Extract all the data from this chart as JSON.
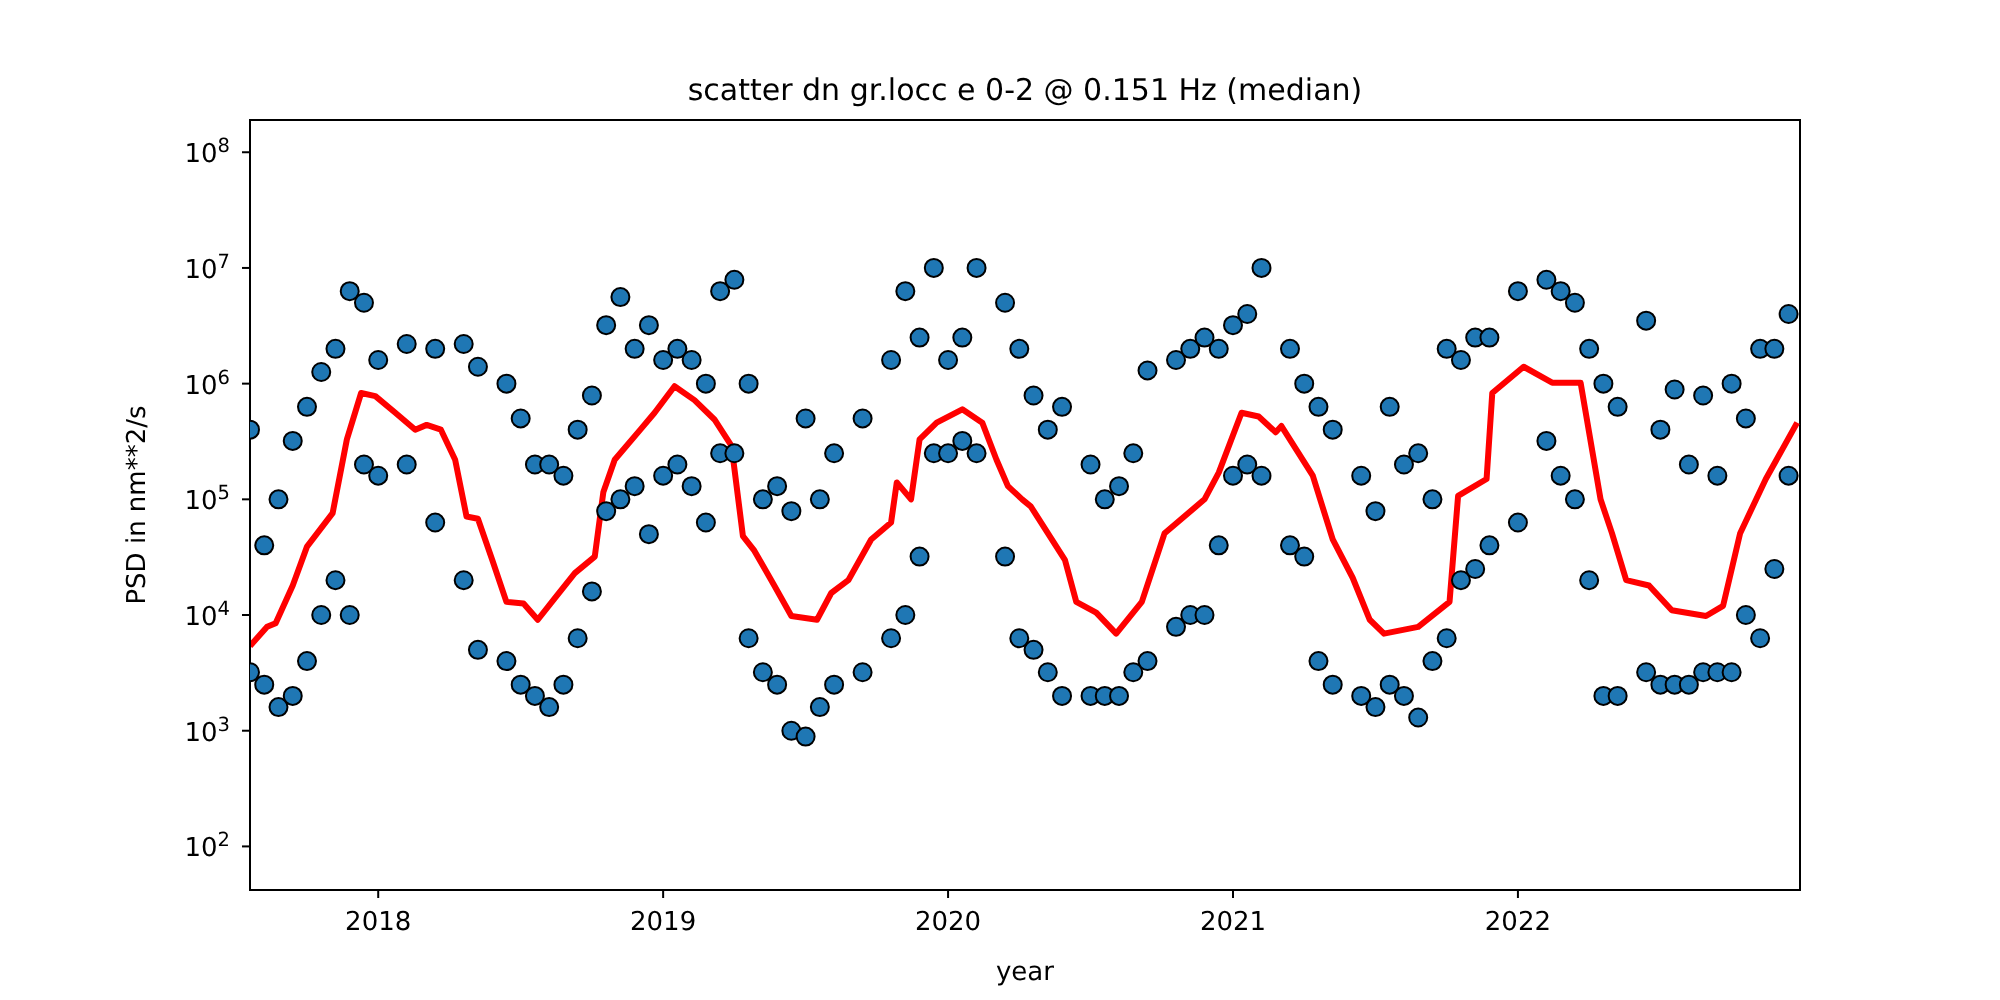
{
  "chart_data": {
    "type": "scatter",
    "title": "scatter dn gr.locc e 0-2 @ 0.151 Hz (median)",
    "xlabel": "year",
    "ylabel": "PSD in nm**2/s",
    "log": "y",
    "grid": false,
    "legend": false,
    "marker": "circle",
    "xlim": [
      2017.55,
      2022.99
    ],
    "xticks": [
      2018,
      2019,
      2020,
      2021,
      2022
    ],
    "ylim": [
      42,
      190000000
    ],
    "yticks": [
      {
        "value": 100,
        "label": "10$^{2}$"
      },
      {
        "value": 1000,
        "label": "10$^{3}$"
      },
      {
        "value": 10000,
        "label": "10$^{4}$"
      },
      {
        "value": 100000,
        "label": "10$^{5}$"
      },
      {
        "value": 1000000,
        "label": "10$^{6}$"
      },
      {
        "value": 10000000,
        "label": "10$^{7}$"
      },
      {
        "value": 100000000,
        "label": "10$^{8}$"
      }
    ],
    "series": [
      {
        "color": "#1f77b4",
        "x": [
          2017.55,
          2017.55,
          2017.6,
          2017.6,
          2017.65,
          2017.65,
          2017.7,
          2017.7,
          2017.75,
          2017.75,
          2017.8,
          2017.8,
          2017.85,
          2017.85,
          2017.9,
          2017.9,
          2017.95,
          2017.95,
          2018.0,
          2018.0,
          2018.1,
          2018.1,
          2018.2,
          2018.2,
          2018.3,
          2018.3,
          2018.35,
          2018.35,
          2018.45,
          2018.45,
          2018.5,
          2018.5,
          2018.55,
          2018.55,
          2018.6,
          2018.6,
          2018.65,
          2018.65,
          2018.7,
          2018.7,
          2018.75,
          2018.75,
          2018.8,
          2018.8,
          2018.85,
          2018.85,
          2018.9,
          2018.9,
          2018.95,
          2018.95,
          2019.0,
          2019.0,
          2019.05,
          2019.05,
          2019.1,
          2019.1,
          2019.15,
          2019.15,
          2019.2,
          2019.2,
          2019.25,
          2019.25,
          2019.3,
          2019.3,
          2019.35,
          2019.35,
          2019.4,
          2019.4,
          2019.45,
          2019.45,
          2019.5,
          2019.5,
          2019.55,
          2019.55,
          2019.6,
          2019.6,
          2019.7,
          2019.7,
          2019.8,
          2019.8,
          2019.85,
          2019.85,
          2019.9,
          2019.9,
          2019.95,
          2019.95,
          2020.0,
          2020.0,
          2020.05,
          2020.05,
          2020.1,
          2020.1,
          2020.2,
          2020.2,
          2020.25,
          2020.25,
          2020.3,
          2020.3,
          2020.35,
          2020.35,
          2020.4,
          2020.4,
          2020.5,
          2020.5,
          2020.55,
          2020.55,
          2020.6,
          2020.6,
          2020.65,
          2020.65,
          2020.7,
          2020.7,
          2020.8,
          2020.8,
          2020.85,
          2020.85,
          2020.9,
          2020.9,
          2020.95,
          2020.95,
          2021.0,
          2021.0,
          2021.05,
          2021.05,
          2021.1,
          2021.1,
          2021.2,
          2021.2,
          2021.25,
          2021.25,
          2021.3,
          2021.3,
          2021.35,
          2021.35,
          2021.45,
          2021.45,
          2021.5,
          2021.5,
          2021.55,
          2021.55,
          2021.6,
          2021.6,
          2021.65,
          2021.65,
          2021.7,
          2021.7,
          2021.75,
          2021.75,
          2021.8,
          2021.8,
          2021.85,
          2021.85,
          2021.9,
          2021.9,
          2022.0,
          2022.0,
          2022.1,
          2022.1,
          2022.15,
          2022.15,
          2022.2,
          2022.2,
          2022.25,
          2022.25,
          2022.3,
          2022.3,
          2022.35,
          2022.35,
          2022.45,
          2022.45,
          2022.5,
          2022.5,
          2022.55,
          2022.55,
          2022.6,
          2022.6,
          2022.65,
          2022.65,
          2022.7,
          2022.7,
          2022.75,
          2022.75,
          2022.8,
          2022.8,
          2022.85,
          2022.85,
          2022.9,
          2022.9,
          2022.95,
          2022.95
        ],
        "values": [
          3200,
          400000,
          2500,
          40000,
          1600,
          100000,
          2000,
          320000,
          4000,
          630000,
          10000,
          1260000,
          20000,
          2000000,
          10000,
          6300000,
          200000,
          5000000,
          160000,
          1600000,
          200000,
          2200000,
          63000,
          2000000,
          20000,
          2200000,
          5000,
          1400000,
          4000,
          1000000,
          2500,
          500000,
          2000,
          200000,
          1600,
          200000,
          2500,
          160000,
          6300,
          400000,
          16000,
          790000,
          79000,
          3200000,
          100000,
          5600000,
          130000,
          2000000,
          50000,
          3200000,
          160000,
          1600000,
          200000,
          2000000,
          130000,
          1600000,
          63000,
          1000000,
          250000,
          6300000,
          250000,
          7900000,
          6300,
          1000000,
          3200,
          100000,
          2500,
          130000,
          1000,
          79000,
          890,
          500000,
          1600,
          100000,
          2500,
          250000,
          3200,
          500000,
          6300,
          1600000,
          10000,
          6300000,
          32000,
          2500000,
          250000,
          10000000,
          250000,
          1600000,
          320000,
          2500000,
          250000,
          10000000,
          32000,
          5000000,
          6300,
          2000000,
          5000,
          790000,
          3200,
          400000,
          2000,
          630000,
          2000,
          200000,
          2000,
          100000,
          2000,
          130000,
          3200,
          250000,
          4000,
          1300000,
          7900,
          1600000,
          10000,
          2000000,
          10000,
          2500000,
          40000,
          2000000,
          160000,
          3200000,
          200000,
          4000000,
          160000,
          10000000,
          40000,
          2000000,
          32000,
          1000000,
          4000,
          630000,
          2500,
          400000,
          2000,
          160000,
          1600,
          79000,
          2500,
          630000,
          2000,
          200000,
          1300,
          250000,
          4000,
          100000,
          6300,
          2000000,
          20000,
          1600000,
          25000,
          2500000,
          40000,
          2500000,
          63000,
          6300000,
          320000,
          7900000,
          160000,
          6300000,
          100000,
          5000000,
          20000,
          2000000,
          2000,
          1000000,
          2000,
          630000,
          3200,
          3500000,
          2500,
          400000,
          2500,
          890000,
          2500,
          200000,
          3200,
          790000,
          3200,
          160000,
          3200,
          1000000,
          10000,
          500000,
          6300,
          2000000,
          25000,
          2000000,
          160000,
          4000000
        ]
      },
      {
        "type": "line",
        "color": "#ff0000",
        "line_style": "solid",
        "marker": "none",
        "x": [
          2017.55,
          2017.61,
          2017.64,
          2017.7,
          2017.75,
          2017.84,
          2017.89,
          2017.94,
          2017.99,
          2018.06,
          2018.13,
          2018.17,
          2018.22,
          2018.27,
          2018.31,
          2018.35,
          2018.4,
          2018.45,
          2018.51,
          2018.56,
          2018.62,
          2018.69,
          2018.76,
          2018.79,
          2018.83,
          2018.92,
          2018.97,
          2019.04,
          2019.11,
          2019.18,
          2019.24,
          2019.28,
          2019.32,
          2019.39,
          2019.45,
          2019.54,
          2019.59,
          2019.65,
          2019.73,
          2019.8,
          2019.82,
          2019.87,
          2019.9,
          2019.96,
          2020.05,
          2020.12,
          2020.17,
          2020.21,
          2020.26,
          2020.29,
          2020.41,
          2020.45,
          2020.52,
          2020.59,
          2020.68,
          2020.76,
          2020.9,
          2020.95,
          2021.03,
          2021.09,
          2021.15,
          2021.17,
          2021.28,
          2021.35,
          2021.42,
          2021.48,
          2021.53,
          2021.65,
          2021.76,
          2021.79,
          2021.89,
          2021.91,
          2022.02,
          2022.12,
          2022.22,
          2022.29,
          2022.33,
          2022.38,
          2022.46,
          2022.54,
          2022.66,
          2022.72,
          2022.78,
          2022.87,
          2022.98
        ],
        "values": [
          5400,
          7900,
          8500,
          18000,
          39000,
          76000,
          330000,
          830000,
          780000,
          560000,
          400000,
          440000,
          400000,
          220000,
          71000,
          68000,
          30000,
          13000,
          12600,
          9100,
          14000,
          23000,
          32000,
          115000,
          220000,
          400000,
          560000,
          950000,
          720000,
          490000,
          290000,
          48000,
          36000,
          18000,
          9800,
          9100,
          15500,
          20000,
          45000,
          63000,
          140000,
          100000,
          330000,
          460000,
          600000,
          460000,
          220000,
          130000,
          100000,
          87000,
          30000,
          13000,
          10500,
          6900,
          13000,
          51000,
          100000,
          170000,
          560000,
          520000,
          380000,
          430000,
          160000,
          45000,
          21000,
          9100,
          6900,
          7900,
          13000,
          107000,
          150000,
          830000,
          1400000,
          1020000,
          1020000,
          100000,
          51000,
          20000,
          18000,
          11000,
          9800,
          12000,
          51000,
          150000,
          460000
        ]
      }
    ]
  }
}
